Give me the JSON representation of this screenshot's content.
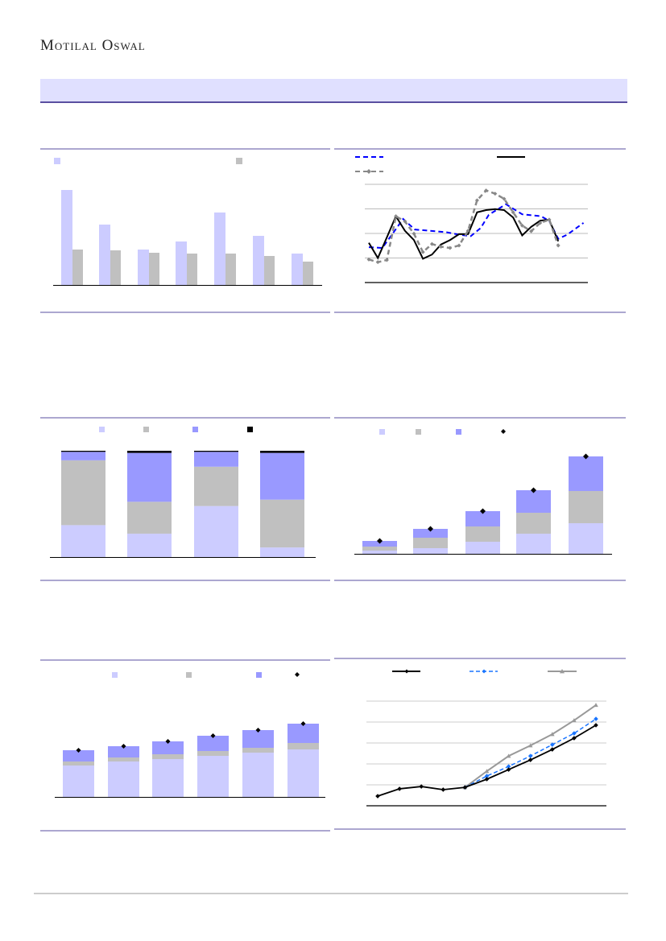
{
  "header": {
    "logo_text": "Motilal Oswal"
  },
  "colors": {
    "light": "#ccccff",
    "grey": "#c0c0c0",
    "purple": "#9999ff",
    "black": "#000000",
    "blue": "#0000ff",
    "blue2": "#1a75ff",
    "rule": "#5a4fa0"
  },
  "chart_data": [
    {
      "type": "bar",
      "legend_placement": "top",
      "series": [
        {
          "values": [
            118,
            75,
            44,
            54,
            90,
            61,
            39
          ]
        },
        {
          "values": [
            44,
            43,
            40,
            39,
            39,
            36,
            29
          ]
        }
      ]
    },
    {
      "type": "line",
      "grid": true,
      "ylim": [
        0,
        4
      ],
      "legend_placement": "top",
      "series": [
        {
          "style": "dashed-blue",
          "x": [
            0,
            1.5,
            3.8,
            5.1,
            8.6,
            10,
            11.3,
            12.4,
            13.3,
            15.2,
            17,
            19.1,
            20,
            21,
            22,
            23.8
          ],
          "values": [
            1.44,
            1.41,
            2.59,
            2.16,
            2.05,
            1.95,
            1.89,
            2.22,
            2.76,
            3.19,
            2.78,
            2.7,
            2.51,
            1.78,
            1.95,
            2.43
          ]
        },
        {
          "style": "solid-black",
          "values": [
            1.62,
            1.0,
            1.84,
            2.7,
            2.11,
            1.73,
            0.97,
            1.14,
            1.55,
            1.73,
            1.97,
            1.97,
            2.86,
            2.95,
            2.99,
            2.95,
            2.65,
            1.92,
            2.27,
            2.52,
            2.56,
            1.68
          ]
        },
        {
          "style": "dashed-grey-diamond",
          "values": [
            0.94,
            0.83,
            0.92,
            2.7,
            2.49,
            1.99,
            1.24,
            1.57,
            1.46,
            1.41,
            1.51,
            2.11,
            3.35,
            3.75,
            3.62,
            3.41,
            2.86,
            2.32,
            2.09,
            2.43,
            2.56,
            1.51
          ]
        }
      ]
    },
    {
      "type": "bar",
      "stacked": "percent",
      "legend_placement": "top",
      "series": [
        {
          "values": [
            30,
            22,
            48,
            9
          ]
        },
        {
          "values": [
            61,
            30,
            37,
            45
          ]
        },
        {
          "values": [
            8,
            46,
            14,
            44
          ]
        },
        {
          "values": [
            1,
            2,
            1,
            2
          ]
        }
      ]
    },
    {
      "type": "bar",
      "stacked": true,
      "legend_placement": "top",
      "series": [
        {
          "values": [
            4,
            7,
            15,
            25,
            38
          ]
        },
        {
          "values": [
            5,
            13,
            19,
            26,
            40
          ]
        },
        {
          "values": [
            7,
            11,
            19,
            28,
            43
          ]
        },
        {
          "marker": "diamond",
          "values": [
            16,
            31,
            53,
            79,
            121
          ]
        }
      ]
    },
    {
      "type": "bar",
      "stacked": true,
      "legend_placement": "top",
      "series": [
        {
          "values": [
            39,
            44,
            47,
            51,
            55,
            59
          ]
        },
        {
          "values": [
            5,
            5,
            6,
            6,
            6,
            8
          ]
        },
        {
          "values": [
            14,
            14,
            16,
            19,
            22,
            24
          ]
        },
        {
          "marker": "diamond",
          "values": [
            58,
            63,
            69,
            76,
            83,
            91
          ]
        }
      ]
    },
    {
      "type": "line",
      "grid": true,
      "ylim": [
        0,
        5
      ],
      "legend_placement": "top",
      "series": [
        {
          "style": "solid-black-diamond",
          "x": [
            0,
            1,
            2,
            3,
            4,
            5,
            6,
            7,
            8,
            9,
            10
          ],
          "values": [
            0.46,
            0.81,
            0.92,
            0.77,
            0.88,
            1.27,
            1.73,
            2.19,
            2.69,
            3.23,
            3.85
          ]
        },
        {
          "style": "dashed-blue-diamond",
          "x": [
            4,
            5,
            6,
            7,
            8,
            9,
            10
          ],
          "values": [
            0.88,
            1.42,
            1.88,
            2.38,
            2.92,
            3.46,
            4.15
          ]
        },
        {
          "style": "solid-grey-triangle",
          "x": [
            4,
            5,
            6,
            7,
            8,
            9,
            10
          ],
          "values": [
            0.88,
            1.65,
            2.38,
            2.88,
            3.42,
            4.08,
            4.81
          ]
        }
      ]
    }
  ]
}
